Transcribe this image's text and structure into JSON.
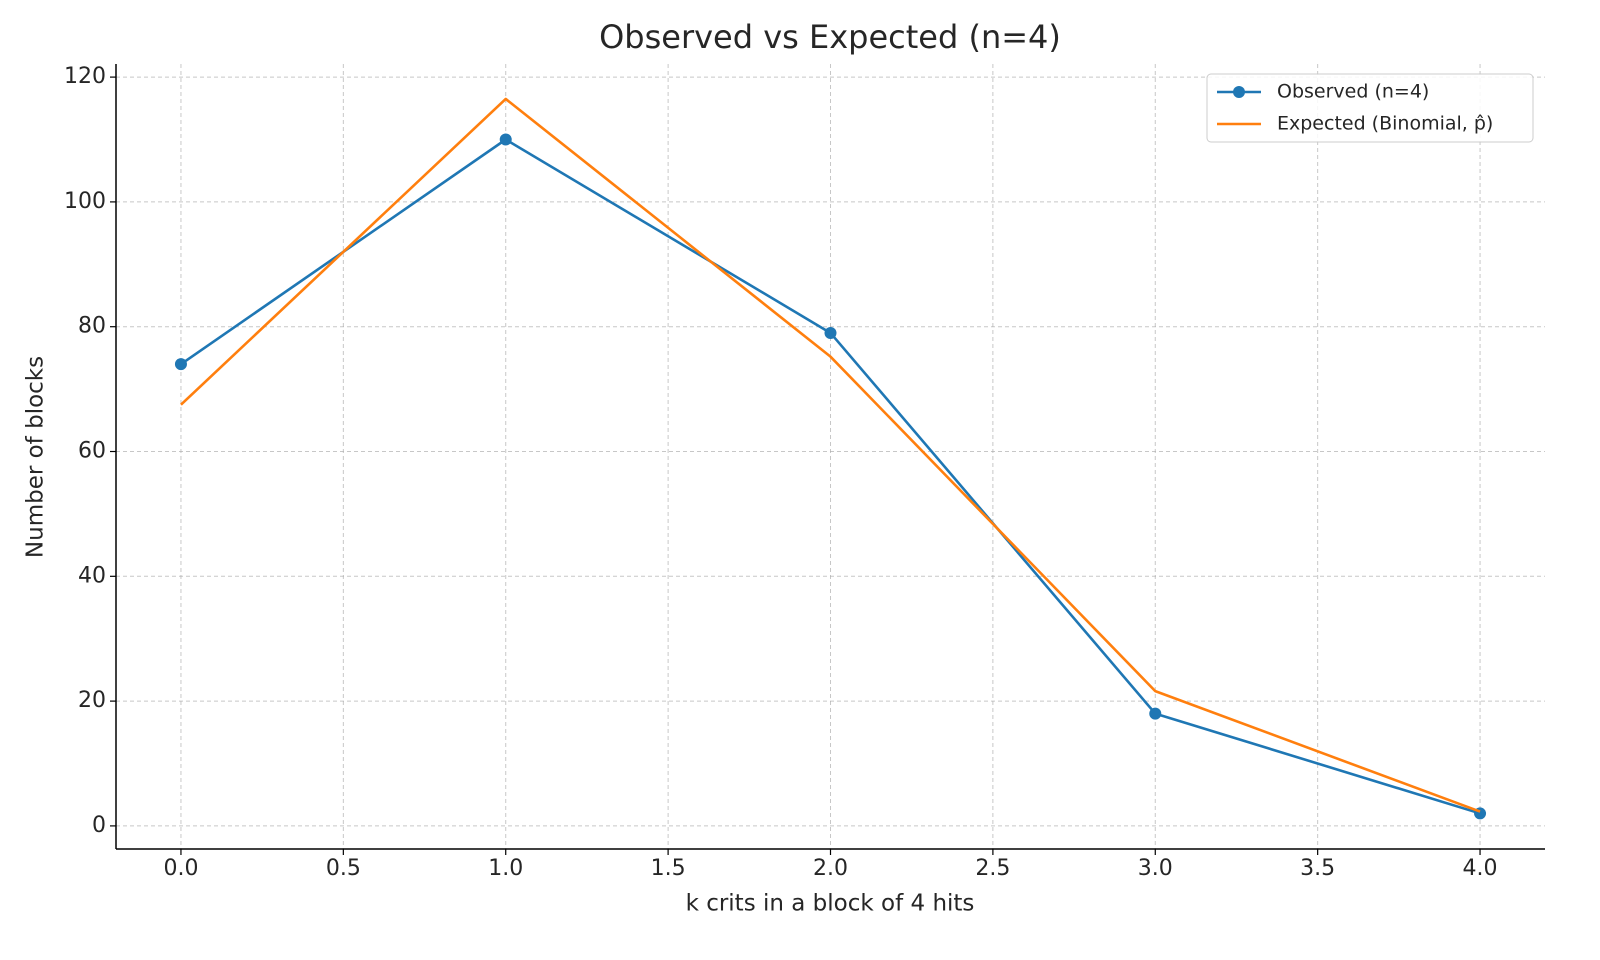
{
  "chart_data": {
    "type": "line",
    "title": "Observed vs Expected (n=4)",
    "x_label": "k crits in a block of 4 hits",
    "y_label": "Number of blocks",
    "x": [
      0,
      1,
      2,
      3,
      4
    ],
    "series": [
      {
        "name": "Observed (n=4)",
        "color": "#1f77b4",
        "marker": true,
        "values": [
          74,
          110,
          79,
          18,
          2
        ]
      },
      {
        "name": "Expected (Binomial, p̂)",
        "color": "#ff7f0e",
        "marker": false,
        "values": [
          67.5,
          116.5,
          75.2,
          21.6,
          2.3
        ]
      }
    ],
    "xlim": [
      -0.2,
      4.2
    ],
    "xticks": [
      {
        "value": 0,
        "label": "0.0"
      },
      {
        "value": 0.5,
        "label": "0.5"
      },
      {
        "value": 1,
        "label": "1.0"
      },
      {
        "value": 1.5,
        "label": "1.5"
      },
      {
        "value": 2,
        "label": "2.0"
      },
      {
        "value": 2.5,
        "label": "2.5"
      },
      {
        "value": 3,
        "label": "3.0"
      },
      {
        "value": 3.5,
        "label": "3.5"
      },
      {
        "value": 4,
        "label": "4.0"
      }
    ],
    "ylim": [
      -3.7,
      122.1
    ],
    "yticks": [
      0,
      20,
      40,
      60,
      80,
      100,
      120
    ],
    "grid": true,
    "legend": "upper right"
  }
}
